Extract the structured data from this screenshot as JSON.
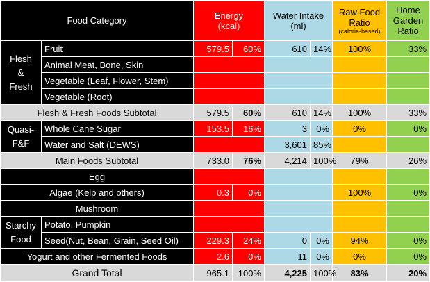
{
  "header": {
    "food_category": "Food Category",
    "energy_line1": "Energy",
    "energy_line2": "(kcal)",
    "water_line1": "Water Intake",
    "water_line2": "(ml)",
    "raw_line1": "Raw Food",
    "raw_line2": "Ratio",
    "raw_line3": "(calorie-based)",
    "home_line1": "Home",
    "home_line2": "Garden",
    "home_line3": "Ratio"
  },
  "groups": {
    "flesh_l1": "Flesh",
    "flesh_l2": "&",
    "flesh_l3": "Fresh",
    "quasi_l1": "Quasi-",
    "quasi_l2": "F&F",
    "starchy_l1": "Starchy",
    "starchy_l2": "Food"
  },
  "rows": {
    "fruit": {
      "label": "Fruit",
      "energy": "579.5",
      "energy_pct": "60%",
      "water": "610",
      "water_pct": "14%",
      "raw": "100%",
      "home": "33%"
    },
    "animal_meat": {
      "label": "Animal Meat, Bone, Skin"
    },
    "veg_leaf": {
      "label": "Vegetable (Leaf, Flower, Stem)"
    },
    "veg_root": {
      "label": "Vegetable (Root)"
    },
    "flesh_subtotal": {
      "label": "Flesh & Fresh Foods Subtotal",
      "energy": "579.5",
      "energy_pct": "60%",
      "water": "610",
      "water_pct": "14%",
      "raw": "100%",
      "home": "33%"
    },
    "cane_sugar": {
      "label": "Whole Cane Sugar",
      "energy": "153.5",
      "energy_pct": "16%",
      "water": "3",
      "water_pct": "0%",
      "raw": "0%",
      "home": "0%"
    },
    "water_salt": {
      "label": "Water and Salt (DEWS)",
      "water": "3,601",
      "water_pct": "85%"
    },
    "main_subtotal": {
      "label": "Main Foods Subtotal",
      "energy": "733.0",
      "energy_pct": "76%",
      "water": "4,214",
      "water_pct": "100%",
      "raw": "79%",
      "home": "26%"
    },
    "egg": {
      "label": "Egg"
    },
    "algae": {
      "label": "Algae (Kelp and others)",
      "energy": "0.3",
      "energy_pct": "0%",
      "raw": "100%",
      "home": "0%"
    },
    "mushroom": {
      "label": "Mushroom"
    },
    "potato": {
      "label": "Potato, Pumpkin"
    },
    "seed": {
      "label": "Seed(Nut, Bean, Grain, Seed Oil)",
      "energy": "229.3",
      "energy_pct": "24%",
      "water": "0",
      "water_pct": "0%",
      "raw": "94%",
      "home": "0%"
    },
    "yogurt": {
      "label": "Yogurt and other Fermented Foods",
      "energy": "2.6",
      "energy_pct": "0%",
      "water": "11",
      "water_pct": "0%",
      "raw": "0%",
      "home": "0%"
    },
    "grand_total": {
      "label": "Grand Total",
      "energy": "965.1",
      "energy_pct": "100%",
      "water": "4,225",
      "water_pct": "100%",
      "raw": "83%",
      "home": "20%"
    }
  },
  "colors": {
    "energy": "#ff0000",
    "water": "#add8e6",
    "raw": "#ffc000",
    "home": "#92d050",
    "category": "#000000",
    "subtotal": "#d9d9d9"
  }
}
